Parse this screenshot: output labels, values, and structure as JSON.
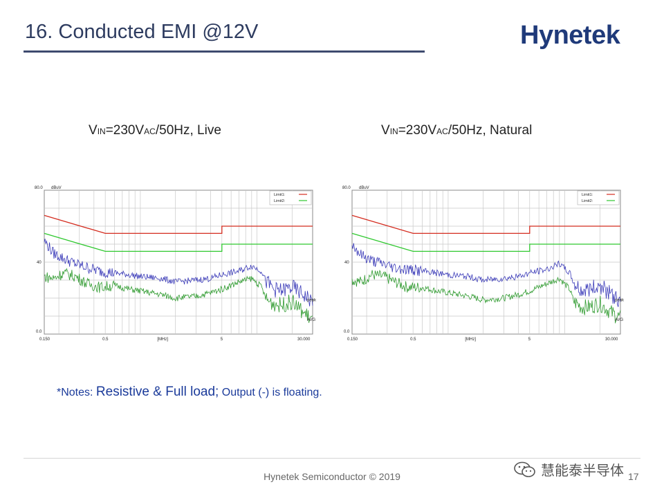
{
  "slide": {
    "title": "16. Conducted EMI @12V",
    "logo": "Hynetek",
    "notes_prefix": "*Notes: ",
    "notes_big1": "Resistive & Full load;",
    "notes_rest": " Output (-) is floating.",
    "footer": "Hynetek Semiconductor © 2019",
    "page_number": "17",
    "watermark": "慧能泰半导体"
  },
  "panels": [
    {
      "heading": {
        "v": "V",
        "in": "IN",
        "mid": "=230V",
        "ac": "AC",
        "tail": "/50Hz, Live"
      }
    },
    {
      "heading": {
        "v": "V",
        "in": "IN",
        "mid": "=230V",
        "ac": "AC",
        "tail": "/50Hz, Natural"
      }
    }
  ],
  "colors": {
    "limit1": "#d42b1e",
    "limit2": "#2ec82e",
    "peak": "#3a3ab8",
    "avg": "#2e9a2e",
    "grid": "#c8c8c8",
    "title": "#2d3b5f",
    "notes": "#1a3a9a"
  },
  "chart_data": [
    {
      "type": "line",
      "x_scale": "log",
      "xlim": [
        0.15,
        30
      ],
      "ylim": [
        0,
        80
      ],
      "ylabel": "dBuV",
      "xlabel": "[MHz]",
      "x_tick_labels": [
        "0.150",
        "0.5",
        "[MHz]",
        "5",
        "30.000"
      ],
      "y_tick_labels": [
        "80.0",
        "40",
        "0.0"
      ],
      "legend": [
        "Limit1:",
        "Limit2:"
      ],
      "end_labels": [
        "peak",
        "AVG"
      ],
      "series": [
        {
          "name": "Limit1",
          "x": [
            0.15,
            0.5,
            5,
            5,
            30
          ],
          "y": [
            66,
            56,
            56,
            60,
            60
          ]
        },
        {
          "name": "Limit2",
          "x": [
            0.15,
            0.5,
            5,
            5,
            30
          ],
          "y": [
            56,
            46,
            46,
            50,
            50
          ]
        },
        {
          "name": "peak",
          "x": [
            0.15,
            0.18,
            0.22,
            0.28,
            0.35,
            0.45,
            0.6,
            0.8,
            1.0,
            1.5,
            2,
            3,
            4,
            5,
            7,
            9,
            11,
            12,
            14,
            16,
            20,
            25,
            30
          ],
          "y": [
            52,
            45,
            42,
            39,
            37,
            35,
            34,
            33,
            32,
            31,
            29,
            30,
            31,
            33,
            35,
            38,
            35,
            29,
            25,
            24,
            26,
            22,
            18
          ]
        },
        {
          "name": "AVG",
          "x": [
            0.15,
            0.18,
            0.22,
            0.28,
            0.35,
            0.45,
            0.6,
            0.8,
            1.0,
            1.5,
            2,
            3,
            4,
            5,
            7,
            9,
            11,
            12,
            14,
            16,
            20,
            25,
            30
          ],
          "y": [
            32,
            31,
            34,
            32,
            28,
            26,
            27,
            25,
            24,
            22,
            20,
            21,
            23,
            25,
            29,
            31,
            26,
            19,
            17,
            16,
            18,
            12,
            8
          ]
        }
      ]
    },
    {
      "type": "line",
      "x_scale": "log",
      "xlim": [
        0.15,
        30
      ],
      "ylim": [
        0,
        80
      ],
      "ylabel": "dBuV",
      "xlabel": "[MHz]",
      "x_tick_labels": [
        "0.150",
        "0.5",
        "[MHz]",
        "5",
        "30.000"
      ],
      "y_tick_labels": [
        "80.0",
        "40",
        "0.0"
      ],
      "legend": [
        "Limit1:",
        "Limit2:"
      ],
      "end_labels": [
        "peak",
        "AVG"
      ],
      "series": [
        {
          "name": "Limit1",
          "x": [
            0.15,
            0.5,
            5,
            5,
            30
          ],
          "y": [
            66,
            56,
            56,
            60,
            60
          ]
        },
        {
          "name": "Limit2",
          "x": [
            0.15,
            0.5,
            5,
            5,
            30
          ],
          "y": [
            56,
            46,
            46,
            50,
            50
          ]
        },
        {
          "name": "peak",
          "x": [
            0.15,
            0.18,
            0.22,
            0.28,
            0.35,
            0.45,
            0.6,
            0.8,
            1.0,
            1.5,
            2,
            3,
            4,
            5,
            7,
            9,
            11,
            12,
            14,
            16,
            20,
            25,
            30
          ],
          "y": [
            50,
            44,
            41,
            39,
            37,
            36,
            35,
            34,
            33,
            32,
            30,
            31,
            32,
            34,
            36,
            39,
            34,
            28,
            24,
            25,
            27,
            22,
            18
          ]
        },
        {
          "name": "AVG",
          "x": [
            0.15,
            0.18,
            0.22,
            0.28,
            0.35,
            0.45,
            0.6,
            0.8,
            1.0,
            1.5,
            2,
            3,
            4,
            5,
            7,
            9,
            11,
            12,
            14,
            16,
            20,
            25,
            30
          ],
          "y": [
            30,
            29,
            33,
            32,
            29,
            26,
            26,
            24,
            23,
            21,
            19,
            20,
            22,
            24,
            28,
            31,
            25,
            18,
            15,
            15,
            17,
            12,
            9
          ]
        }
      ]
    }
  ]
}
